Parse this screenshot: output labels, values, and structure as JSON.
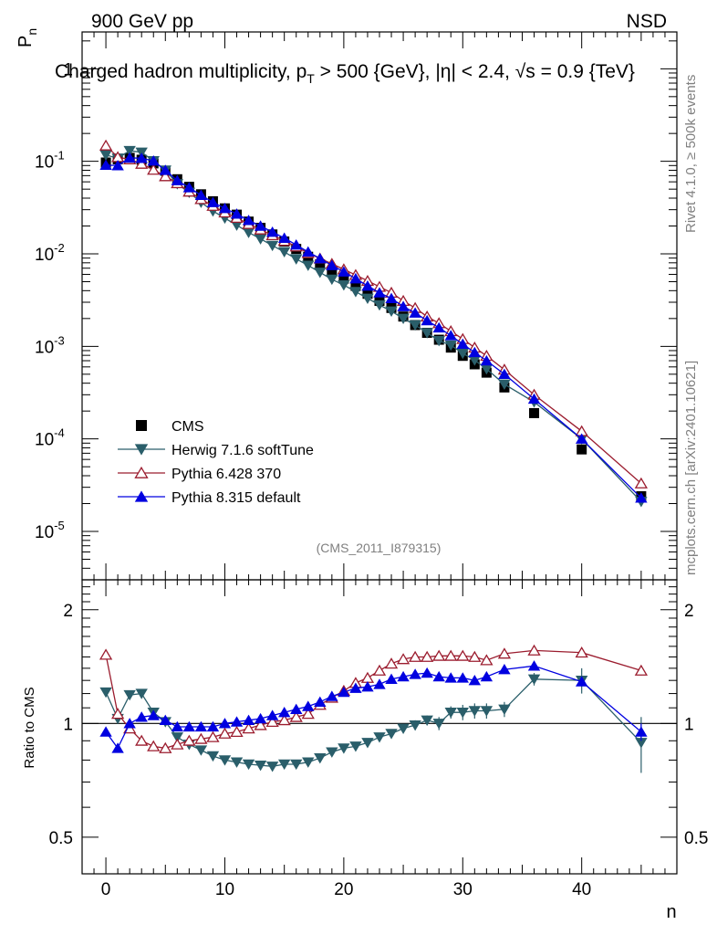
{
  "header": {
    "energy": "900 GeV pp",
    "process": "NSD"
  },
  "side_labels": {
    "rivet": "Rivet 4.1.0, ≥ 500k events",
    "mcplots": "mcplots.cern.ch [arXiv:2401.10621]"
  },
  "chart_data": [
    {
      "type": "scatter",
      "title": "Charged hadron multiplicity, p_T > 500 {GeV}, |η| < 2.4, √s = 0.9 {TeV}",
      "xlabel": "n",
      "ylabel": "P_n",
      "yscale": "log",
      "xlim": [
        -2,
        48
      ],
      "ylim": [
        3e-06,
        2.5
      ],
      "y_ticks": [
        "1",
        "10^-1",
        "10^-2",
        "10^-3",
        "10^-4",
        "10^-5"
      ],
      "x_ticks": [
        "0",
        "10",
        "20",
        "30",
        "40"
      ],
      "analysis_tag": "(CMS_2011_I879315)",
      "legend": {
        "position": "bottom-left",
        "entries": [
          "CMS",
          "Herwig 7.1.6 softTune",
          "Pythia 6.428 370",
          "Pythia 8.315 default"
        ]
      },
      "x": [
        0,
        1,
        2,
        3,
        4,
        5,
        6,
        7,
        8,
        9,
        10,
        11,
        12,
        13,
        14,
        15,
        16,
        17,
        18,
        19,
        20,
        21,
        22,
        23,
        24,
        25,
        26,
        27,
        28,
        29,
        30,
        31,
        32,
        33.5,
        36,
        40,
        45
      ],
      "series": [
        {
          "name": "CMS",
          "color": "#000000",
          "marker": "square",
          "values": [
            0.097,
            0.105,
            0.109,
            0.104,
            0.095,
            0.079,
            0.064,
            0.053,
            0.044,
            0.037,
            0.031,
            0.0265,
            0.0223,
            0.0191,
            0.0162,
            0.0136,
            0.0113,
            0.0093,
            0.0077,
            0.0064,
            0.0054,
            0.0045,
            0.0037,
            0.0031,
            0.0026,
            0.0021,
            0.0017,
            0.0014,
            0.00118,
            0.00097,
            0.00079,
            0.00064,
            0.00052,
            0.00036,
            0.00019,
            7.7e-05,
            2.4e-05
          ]
        },
        {
          "name": "Herwig 7.1.6 softTune",
          "color": "#2a5e6a",
          "marker": "triangle-down",
          "values": [
            0.117,
            0.108,
            0.13,
            0.125,
            0.101,
            0.08,
            0.057,
            0.046,
            0.036,
            0.029,
            0.0243,
            0.0204,
            0.017,
            0.0145,
            0.0123,
            0.0105,
            0.0088,
            0.0075,
            0.0063,
            0.0053,
            0.0046,
            0.0039,
            0.0033,
            0.0028,
            0.0024,
            0.002,
            0.0017,
            0.0014,
            0.00115,
            0.00103,
            0.00084,
            0.00071,
            0.00057,
            0.00039,
            0.00025,
            0.0001,
            2.1e-05
          ]
        },
        {
          "name": "Pythia 6.428 370",
          "color": "#9b1c2e",
          "marker": "triangle-up-open",
          "values": [
            0.148,
            0.111,
            0.105,
            0.094,
            0.081,
            0.069,
            0.058,
            0.047,
            0.039,
            0.033,
            0.028,
            0.0245,
            0.021,
            0.0183,
            0.0159,
            0.0138,
            0.012,
            0.0102,
            0.0089,
            0.0078,
            0.0068,
            0.0059,
            0.0051,
            0.0044,
            0.0038,
            0.0031,
            0.0026,
            0.0021,
            0.00178,
            0.00146,
            0.0012,
            0.00097,
            0.00079,
            0.00056,
            0.0003,
            0.000121,
            3.3e-05
          ]
        },
        {
          "name": "Pythia 8.315 default",
          "color": "#0000e0",
          "marker": "triangle-up",
          "values": [
            0.091,
            0.09,
            0.109,
            0.108,
            0.101,
            0.08,
            0.062,
            0.052,
            0.043,
            0.036,
            0.031,
            0.027,
            0.023,
            0.02,
            0.0172,
            0.0148,
            0.0125,
            0.0105,
            0.0089,
            0.0075,
            0.0064,
            0.0054,
            0.0045,
            0.0038,
            0.0033,
            0.0027,
            0.0023,
            0.0019,
            0.00159,
            0.00131,
            0.00106,
            0.00086,
            0.0007,
            0.0005,
            0.00027,
            0.0001,
            2.3e-05
          ]
        }
      ]
    },
    {
      "type": "line",
      "ylabel": "Ratio to CMS",
      "yscale": "log",
      "ylim": [
        0.4,
        2.4
      ],
      "y_ticks": [
        "2",
        "1",
        "0.5"
      ],
      "reference": 1,
      "x": [
        0,
        1,
        2,
        3,
        4,
        5,
        6,
        7,
        8,
        9,
        10,
        11,
        12,
        13,
        14,
        15,
        16,
        17,
        18,
        19,
        20,
        21,
        22,
        23,
        24,
        25,
        26,
        27,
        28,
        29,
        30,
        31,
        32,
        33.5,
        36,
        40,
        45
      ],
      "series": [
        {
          "name": "Herwig 7.1.6 softTune",
          "color": "#2a5e6a",
          "marker": "triangle-down",
          "values": [
            1.21,
            1.03,
            1.19,
            1.2,
            1.07,
            1.01,
            0.92,
            0.88,
            0.85,
            0.82,
            0.8,
            0.79,
            0.78,
            0.775,
            0.77,
            0.78,
            0.78,
            0.79,
            0.81,
            0.84,
            0.86,
            0.87,
            0.89,
            0.92,
            0.94,
            0.97,
            0.99,
            1.02,
            1.0,
            1.07,
            1.07,
            1.08,
            1.08,
            1.09,
            1.31,
            1.3,
            0.89
          ],
          "errors": [
            0,
            0,
            0,
            0,
            0,
            0,
            0,
            0,
            0,
            0,
            0,
            0,
            0,
            0,
            0,
            0,
            0,
            0,
            0,
            0,
            0,
            0,
            0,
            0,
            0,
            0.02,
            0.03,
            0.03,
            0.04,
            0.04,
            0.05,
            0.05,
            0.05,
            0.05,
            0.05,
            0.1,
            0.15
          ]
        },
        {
          "name": "Pythia 6.428 370",
          "color": "#9b1c2e",
          "marker": "triangle-up-open",
          "values": [
            1.52,
            1.06,
            0.97,
            0.9,
            0.87,
            0.86,
            0.88,
            0.9,
            0.91,
            0.92,
            0.94,
            0.95,
            0.97,
            0.99,
            1.01,
            1.02,
            1.04,
            1.06,
            1.12,
            1.17,
            1.22,
            1.28,
            1.32,
            1.38,
            1.44,
            1.48,
            1.5,
            1.5,
            1.51,
            1.51,
            1.51,
            1.5,
            1.47,
            1.53,
            1.56,
            1.54,
            1.38
          ],
          "errors": [
            0,
            0,
            0,
            0,
            0,
            0,
            0,
            0,
            0,
            0,
            0,
            0,
            0,
            0,
            0,
            0,
            0,
            0,
            0,
            0,
            0,
            0,
            0,
            0,
            0,
            0,
            0,
            0,
            0,
            0,
            0,
            0,
            0,
            0,
            0,
            0,
            0.04
          ]
        },
        {
          "name": "Pythia 8.315 default",
          "color": "#0000e0",
          "marker": "triangle-up",
          "values": [
            0.95,
            0.86,
            1.0,
            1.04,
            1.05,
            1.02,
            0.98,
            0.98,
            0.98,
            0.98,
            1.0,
            1.01,
            1.02,
            1.03,
            1.05,
            1.07,
            1.09,
            1.11,
            1.14,
            1.18,
            1.21,
            1.24,
            1.25,
            1.27,
            1.31,
            1.33,
            1.35,
            1.36,
            1.33,
            1.32,
            1.32,
            1.3,
            1.33,
            1.39,
            1.42,
            1.29,
            0.95
          ],
          "errors": [
            0,
            0,
            0,
            0,
            0,
            0,
            0,
            0,
            0,
            0,
            0,
            0,
            0,
            0,
            0,
            0,
            0,
            0,
            0,
            0,
            0,
            0,
            0,
            0,
            0,
            0,
            0,
            0,
            0,
            0,
            0,
            0,
            0,
            0,
            0,
            0.03,
            0.05
          ]
        }
      ]
    }
  ]
}
